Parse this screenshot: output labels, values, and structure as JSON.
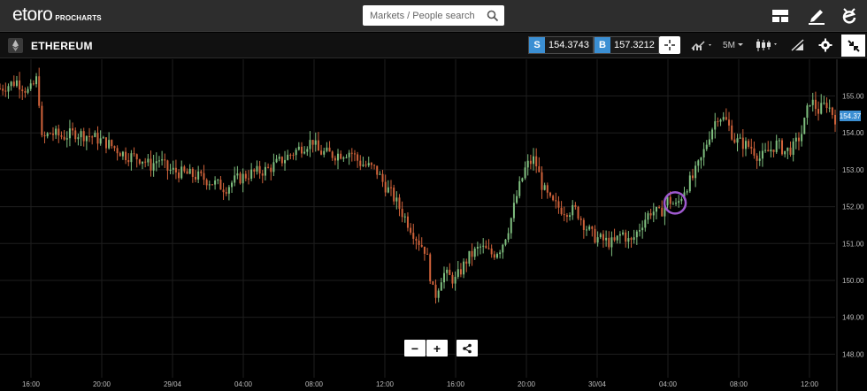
{
  "app": {
    "logo_text": "etoro",
    "logo_sub": "PROCHARTS",
    "search_placeholder": "Markets / People search"
  },
  "instrument": {
    "name": "ETHEREUM",
    "sell_label": "S",
    "sell_price": "154.3743",
    "buy_label": "B",
    "buy_price": "157.3212",
    "timeframe": "5M",
    "current_price_label": "154.37"
  },
  "toolbar": {
    "layout_icon": "layout-icon",
    "edit_icon": "pencil-icon",
    "profile_icon": "etoro-e-icon",
    "crosshair_icon": "crosshair-icon",
    "indicator_icon": "indicators-icon",
    "candle_icon": "candlestick-icon",
    "drawing_icon": "drawing-icon",
    "settings_icon": "gear-icon",
    "collapse_icon": "collapse-icon"
  },
  "zoom": {
    "minus": "−",
    "plus": "+",
    "share_icon": "share-icon"
  },
  "colors": {
    "up": "#7fbf7f",
    "down": "#d0623a",
    "accent": "#3b8fd3",
    "marker": "#a05ad0"
  },
  "chart_data": {
    "type": "candlestick",
    "title": "",
    "y_ticks": [
      "155.00",
      "154.00",
      "153.00",
      "152.00",
      "151.00",
      "150.00",
      "149.00",
      "148.00"
    ],
    "ylim": [
      147.6,
      155.9
    ],
    "x_ticks": [
      "16:00",
      "20:00",
      "29/04",
      "04:00",
      "08:00",
      "12:00",
      "16:00",
      "20:00",
      "30/04",
      "04:00",
      "08:00",
      "12:00"
    ],
    "close_path": [
      [
        0,
        155.2
      ],
      [
        0.02,
        155.4
      ],
      [
        0.035,
        155.1
      ],
      [
        0.045,
        155.5
      ],
      [
        0.05,
        153.8
      ],
      [
        0.06,
        154.0
      ],
      [
        0.075,
        153.9
      ],
      [
        0.09,
        154.0
      ],
      [
        0.11,
        153.9
      ],
      [
        0.13,
        153.7
      ],
      [
        0.15,
        153.4
      ],
      [
        0.17,
        153.3
      ],
      [
        0.18,
        153.1
      ],
      [
        0.19,
        153.3
      ],
      [
        0.2,
        153.0
      ],
      [
        0.22,
        152.9
      ],
      [
        0.24,
        152.8
      ],
      [
        0.26,
        152.6
      ],
      [
        0.27,
        152.5
      ],
      [
        0.28,
        152.7
      ],
      [
        0.3,
        152.9
      ],
      [
        0.32,
        153.0
      ],
      [
        0.34,
        153.3
      ],
      [
        0.36,
        153.6
      ],
      [
        0.375,
        153.8
      ],
      [
        0.38,
        153.5
      ],
      [
        0.4,
        153.4
      ],
      [
        0.42,
        153.5
      ],
      [
        0.43,
        153.2
      ],
      [
        0.45,
        153.0
      ],
      [
        0.46,
        152.6
      ],
      [
        0.47,
        152.3
      ],
      [
        0.48,
        151.9
      ],
      [
        0.49,
        151.5
      ],
      [
        0.5,
        151.1
      ],
      [
        0.51,
        150.8
      ],
      [
        0.52,
        149.5
      ],
      [
        0.53,
        150.2
      ],
      [
        0.545,
        150.0
      ],
      [
        0.56,
        150.6
      ],
      [
        0.575,
        150.9
      ],
      [
        0.59,
        150.7
      ],
      [
        0.6,
        150.9
      ],
      [
        0.61,
        151.5
      ],
      [
        0.62,
        152.4
      ],
      [
        0.63,
        153.1
      ],
      [
        0.64,
        153.3
      ],
      [
        0.65,
        152.5
      ],
      [
        0.66,
        152.1
      ],
      [
        0.675,
        151.9
      ],
      [
        0.69,
        151.9
      ],
      [
        0.7,
        151.5
      ],
      [
        0.71,
        151.2
      ],
      [
        0.72,
        151.1
      ],
      [
        0.735,
        151.0
      ],
      [
        0.745,
        151.3
      ],
      [
        0.755,
        151.0
      ],
      [
        0.77,
        151.6
      ],
      [
        0.78,
        151.9
      ],
      [
        0.79,
        151.8
      ],
      [
        0.8,
        152.2
      ],
      [
        0.81,
        152.0
      ],
      [
        0.82,
        152.5
      ],
      [
        0.83,
        152.8
      ],
      [
        0.84,
        153.3
      ],
      [
        0.85,
        154.0
      ],
      [
        0.86,
        154.5
      ],
      [
        0.87,
        154.3
      ],
      [
        0.88,
        153.8
      ],
      [
        0.89,
        153.7
      ],
      [
        0.9,
        153.6
      ],
      [
        0.91,
        153.3
      ],
      [
        0.92,
        153.5
      ],
      [
        0.93,
        153.7
      ],
      [
        0.94,
        153.5
      ],
      [
        0.95,
        153.6
      ],
      [
        0.96,
        154.0
      ],
      [
        0.97,
        154.9
      ],
      [
        0.98,
        154.6
      ],
      [
        0.99,
        154.8
      ],
      [
        1.0,
        154.4
      ]
    ],
    "marker": {
      "x": 0.82,
      "y": 152.1
    }
  }
}
